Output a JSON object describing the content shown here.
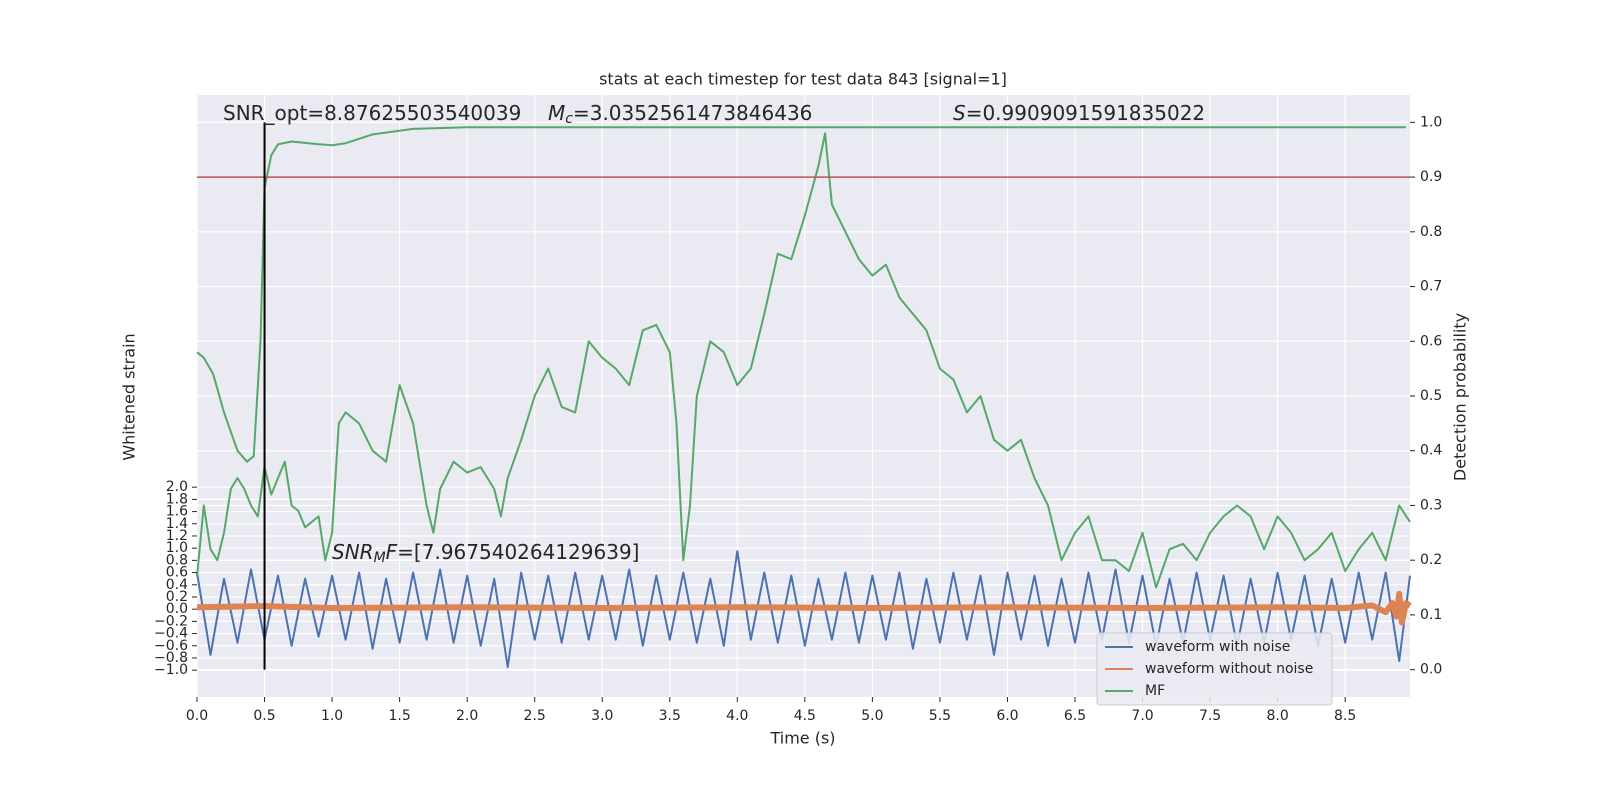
{
  "chart_data": {
    "type": "line",
    "title": "stats at each timestep for test data 843 [signal=1]",
    "xlabel": "Time (s)",
    "ylabel": "Whitened strain",
    "y2label": "Detection probability",
    "xlim": [
      0,
      8.98
    ],
    "ylim": [
      -1.44,
      8.43
    ],
    "y2lim": [
      -0.05,
      1.05
    ],
    "xticks": [
      {
        "value": 0,
        "label": "0.0"
      },
      0.5,
      {
        "value": 1,
        "label": "1.0"
      },
      1.5,
      {
        "value": 2,
        "label": "2.0"
      },
      2.5,
      {
        "value": 3,
        "label": "3.0"
      },
      3.5,
      {
        "value": 4,
        "label": "4.0"
      },
      4.5,
      {
        "value": 5,
        "label": "5.0"
      },
      5.5,
      {
        "value": 6,
        "label": "6.0"
      },
      6.5,
      {
        "value": 7,
        "label": "7.0"
      },
      7.5,
      {
        "value": 8,
        "label": "8.0"
      },
      8.5
    ],
    "yticks": [
      {
        "value": -1,
        "label": "−1.0"
      },
      {
        "value": -0.8,
        "label": "−0.8"
      },
      {
        "value": -0.6,
        "label": "−0.6"
      },
      {
        "value": -0.4,
        "label": "−0.4"
      },
      {
        "value": -0.2,
        "label": "−0.2"
      },
      {
        "value": 0,
        "label": "0.0"
      },
      0.2,
      0.4,
      0.6,
      0.8,
      {
        "value": 1,
        "label": "1.0"
      },
      1.2,
      1.4,
      1.6,
      1.8,
      {
        "value": 2,
        "label": "2.0"
      }
    ],
    "y2ticks": [
      {
        "value": 0,
        "label": "0.0"
      },
      0.1,
      0.2,
      0.3,
      0.4,
      0.5,
      0.6,
      0.7,
      0.8,
      0.9,
      {
        "value": 1,
        "label": "1.0"
      }
    ],
    "grid": true,
    "legend": "lower right",
    "hline": {
      "y": 0.9,
      "color": "#c44e52",
      "axis": "y2"
    },
    "vline": {
      "x": 0.5,
      "color": "#000000",
      "ymin": 0,
      "ymax": 1,
      "axis": "y2"
    },
    "annotations": [
      [
        {
          "text": "SNR_opt=8.87625503540039"
        }
      ],
      [
        {
          "text": "M",
          "style": "italic"
        },
        {
          "text": "c",
          "style": "sub"
        },
        {
          "text": "=3.0352561473846436"
        }
      ],
      [
        {
          "text": "S",
          "style": "italic"
        },
        {
          "text": "=0.9909091591835022"
        }
      ],
      [
        {
          "text": "SNR",
          "style": "italic"
        },
        {
          "text": "M",
          "style": "sub"
        },
        {
          "text": "F",
          "style": "italic"
        },
        {
          "text": "=[7.967540264129639]"
        }
      ]
    ],
    "series": [
      {
        "name": "waveform with noise",
        "color": "#4c72b0",
        "width": 2,
        "x": [
          0,
          0.1,
          0.2,
          0.3,
          0.4,
          0.5,
          0.6,
          0.7,
          0.8,
          0.9,
          1,
          1.1,
          1.2,
          1.3,
          1.4,
          1.5,
          1.6,
          1.7,
          1.8,
          1.9,
          2,
          2.1,
          2.2,
          2.3,
          2.4,
          2.5,
          2.6,
          2.7,
          2.8,
          2.9,
          3,
          3.1,
          3.2,
          3.3,
          3.4,
          3.5,
          3.6,
          3.7,
          3.8,
          3.9,
          4,
          4.1,
          4.2,
          4.3,
          4.4,
          4.5,
          4.6,
          4.7,
          4.8,
          4.9,
          5,
          5.1,
          5.2,
          5.3,
          5.4,
          5.5,
          5.6,
          5.7,
          5.8,
          5.9,
          6,
          6.1,
          6.2,
          6.3,
          6.4,
          6.5,
          6.6,
          6.7,
          6.8,
          6.9,
          7,
          7.1,
          7.2,
          7.3,
          7.4,
          7.5,
          7.6,
          7.7,
          7.8,
          7.9,
          8,
          8.1,
          8.2,
          8.3,
          8.4,
          8.5,
          8.6,
          8.7,
          8.8,
          8.9,
          8.98
        ],
        "values": [
          0.6,
          -0.75,
          0.5,
          -0.55,
          0.65,
          -0.5,
          0.55,
          -0.6,
          0.5,
          -0.45,
          0.55,
          -0.5,
          0.6,
          -0.65,
          0.5,
          -0.55,
          0.6,
          -0.5,
          0.65,
          -0.55,
          0.55,
          -0.6,
          0.5,
          -0.95,
          0.6,
          -0.5,
          0.55,
          -0.55,
          0.6,
          -0.5,
          0.55,
          -0.5,
          0.65,
          -0.6,
          0.55,
          -0.5,
          0.6,
          -0.55,
          0.5,
          -0.6,
          0.95,
          -0.5,
          0.6,
          -0.55,
          0.55,
          -0.6,
          0.5,
          -0.5,
          0.6,
          -0.55,
          0.55,
          -0.5,
          0.6,
          -0.65,
          0.5,
          -0.55,
          0.6,
          -0.5,
          0.55,
          -0.75,
          0.6,
          -0.5,
          0.55,
          -0.6,
          0.5,
          -0.55,
          0.6,
          -0.5,
          0.65,
          -0.55,
          0.55,
          -0.6,
          0.5,
          -0.55,
          0.6,
          -0.5,
          0.55,
          -0.6,
          0.5,
          -0.55,
          0.6,
          -0.5,
          0.55,
          -0.6,
          0.5,
          -0.55,
          0.6,
          -0.5,
          0.6,
          -0.85,
          0.55
        ]
      },
      {
        "name": "waveform without noise",
        "color": "#dd8452",
        "width": 6,
        "x": [
          0,
          0.5,
          1,
          2,
          3,
          4,
          5,
          6,
          7,
          8,
          8.5,
          8.7,
          8.8,
          8.85,
          8.88,
          8.9,
          8.92,
          8.95,
          8.98
        ],
        "values": [
          0.03,
          0.05,
          0.02,
          0.03,
          0.02,
          0.03,
          0.02,
          0.03,
          0.02,
          0.03,
          0.02,
          0.06,
          -0.05,
          0.1,
          -0.12,
          0.25,
          -0.22,
          0.1,
          0.05
        ]
      },
      {
        "name": "MF",
        "color": "#55a868",
        "width": 2,
        "axis": "y2",
        "x": [
          0,
          0.05,
          0.1,
          0.15,
          0.2,
          0.25,
          0.3,
          0.35,
          0.4,
          0.45,
          0.5,
          0.55,
          0.6,
          0.65,
          0.7,
          0.75,
          0.8,
          0.9,
          0.95,
          1,
          1.05,
          1.1,
          1.2,
          1.3,
          1.4,
          1.5,
          1.6,
          1.7,
          1.75,
          1.8,
          1.9,
          2,
          2.1,
          2.2,
          2.25,
          2.3,
          2.4,
          2.5,
          2.6,
          2.7,
          2.8,
          2.9,
          3,
          3.1,
          3.2,
          3.3,
          3.4,
          3.5,
          3.55,
          3.6,
          3.65,
          3.7,
          3.8,
          3.9,
          4,
          4.1,
          4.2,
          4.3,
          4.4,
          4.5,
          4.6,
          4.65,
          4.7,
          4.8,
          4.9,
          5,
          5.1,
          5.2,
          5.3,
          5.4,
          5.5,
          5.6,
          5.7,
          5.8,
          5.9,
          6,
          6.1,
          6.2,
          6.3,
          6.4,
          6.5,
          6.6,
          6.7,
          6.8,
          6.9,
          7,
          7.1,
          7.2,
          7.3,
          7.4,
          7.5,
          7.6,
          7.7,
          7.8,
          7.9,
          8,
          8.1,
          8.2,
          8.3,
          8.4,
          8.5,
          8.6,
          8.7,
          8.8,
          8.9,
          8.98
        ],
        "values": [
          0.17,
          0.3,
          0.22,
          0.2,
          0.25,
          0.33,
          0.35,
          0.33,
          0.3,
          0.28,
          0.37,
          0.32,
          0.35,
          0.38,
          0.3,
          0.29,
          0.26,
          0.28,
          0.2,
          0.25,
          0.45,
          0.47,
          0.45,
          0.4,
          0.38,
          0.52,
          0.45,
          0.3,
          0.25,
          0.33,
          0.38,
          0.36,
          0.37,
          0.33,
          0.28,
          0.35,
          0.42,
          0.5,
          0.55,
          0.48,
          0.47,
          0.6,
          0.57,
          0.55,
          0.52,
          0.62,
          0.63,
          0.58,
          0.45,
          0.2,
          0.3,
          0.5,
          0.6,
          0.58,
          0.52,
          0.55,
          0.65,
          0.76,
          0.75,
          0.83,
          0.92,
          0.98,
          0.85,
          0.8,
          0.75,
          0.72,
          0.74,
          0.68,
          0.65,
          0.62,
          0.55,
          0.53,
          0.47,
          0.5,
          0.42,
          0.4,
          0.42,
          0.35,
          0.3,
          0.2,
          0.25,
          0.28,
          0.2,
          0.2,
          0.18,
          0.25,
          0.15,
          0.22,
          0.23,
          0.2,
          0.25,
          0.28,
          0.3,
          0.28,
          0.22,
          0.28,
          0.25,
          0.2,
          0.22,
          0.25,
          0.18,
          0.22,
          0.25,
          0.2,
          0.3,
          0.27
        ]
      },
      {
        "color": "#55a868",
        "width": 2,
        "axis": "y2",
        "x": [
          0,
          0.05,
          0.12,
          0.2,
          0.3,
          0.37,
          0.42,
          0.47,
          0.5,
          0.55,
          0.6,
          0.7,
          0.9,
          1,
          1.1,
          1.3,
          1.6,
          2,
          3,
          5,
          8.95
        ],
        "values": [
          0.58,
          0.57,
          0.54,
          0.47,
          0.4,
          0.38,
          0.39,
          0.6,
          0.88,
          0.94,
          0.96,
          0.965,
          0.96,
          0.958,
          0.962,
          0.978,
          0.988,
          0.991,
          0.991,
          0.991,
          0.991
        ]
      }
    ]
  }
}
